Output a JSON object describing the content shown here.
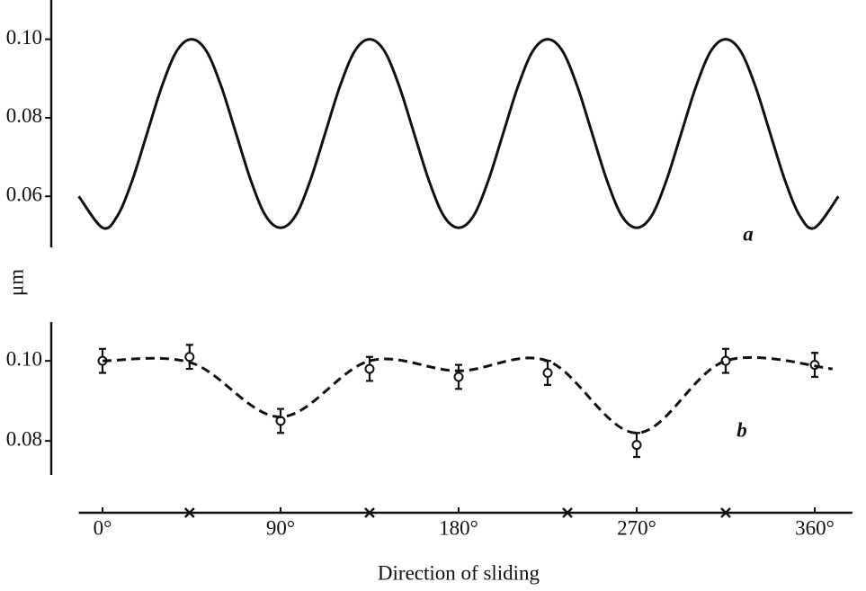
{
  "chart_data": [
    {
      "type": "line",
      "annotation": "a",
      "xlim": [
        -12,
        379
      ],
      "ylim": [
        0.047,
        0.11
      ],
      "yticks": [
        {
          "value": 0.1,
          "label": "0.10"
        },
        0.08,
        0.06
      ],
      "series": [
        {
          "color": "#111111",
          "x": [
            -12,
            0,
            7.5,
            15,
            22.5,
            30,
            37.5,
            45,
            52.5,
            60,
            67.5,
            75,
            82.5,
            90,
            97.5,
            105,
            112.5,
            120,
            127.5,
            135,
            142.5,
            150,
            157.5,
            165,
            172.5,
            180,
            187.5,
            195,
            202.5,
            210,
            217.5,
            225,
            232.5,
            240,
            247.5,
            255,
            262.5,
            270,
            277.5,
            285,
            292.5,
            300,
            307.5,
            315,
            322.5,
            330,
            337.5,
            345,
            352.5,
            360,
            372
          ],
          "values": [
            0.06,
            0.052,
            0.055,
            0.064,
            0.076,
            0.088,
            0.097,
            0.1,
            0.097,
            0.088,
            0.076,
            0.064,
            0.055,
            0.052,
            0.055,
            0.064,
            0.076,
            0.088,
            0.097,
            0.1,
            0.097,
            0.088,
            0.076,
            0.064,
            0.055,
            0.052,
            0.055,
            0.064,
            0.076,
            0.088,
            0.097,
            0.1,
            0.097,
            0.088,
            0.076,
            0.064,
            0.055,
            0.052,
            0.055,
            0.064,
            0.076,
            0.088,
            0.097,
            0.1,
            0.097,
            0.088,
            0.076,
            0.064,
            0.055,
            0.052,
            0.06
          ]
        }
      ]
    },
    {
      "type": "errorbar",
      "annotation": "b",
      "ylabel": "μm",
      "xlabel": "Direction of sliding",
      "xlim": [
        -12,
        379
      ],
      "ylim": [
        0.0715,
        0.1097
      ],
      "yticks": [
        {
          "value": 0.1,
          "label": "0.10"
        },
        0.08
      ],
      "xticks": [
        {
          "value": 0,
          "label": "0°"
        },
        {
          "value": 90,
          "label": "90°"
        },
        {
          "value": 180,
          "label": "180°"
        },
        {
          "value": 270,
          "label": "270°"
        },
        {
          "value": 360,
          "label": "360°"
        }
      ],
      "x_marks": [
        44,
        135,
        235,
        315
      ],
      "series": [
        {
          "color": "#111111",
          "marker": "circle",
          "x": [
            0,
            44,
            90,
            135,
            180,
            225,
            270,
            315,
            360
          ],
          "values": [
            0.1,
            0.101,
            0.085,
            0.098,
            0.096,
            0.097,
            0.079,
            0.1,
            0.099
          ],
          "errors": [
            0.003,
            0.003,
            0.003,
            0.003,
            0.003,
            0.003,
            0.003,
            0.003,
            0.003
          ]
        },
        {
          "color": "#111111",
          "line_style": "dashed",
          "x": [
            0,
            45,
            90,
            135,
            180,
            225,
            270,
            315,
            369
          ],
          "values": [
            0.1,
            0.0995,
            0.086,
            0.1,
            0.0975,
            0.1,
            0.082,
            0.1,
            0.098
          ]
        }
      ]
    }
  ]
}
